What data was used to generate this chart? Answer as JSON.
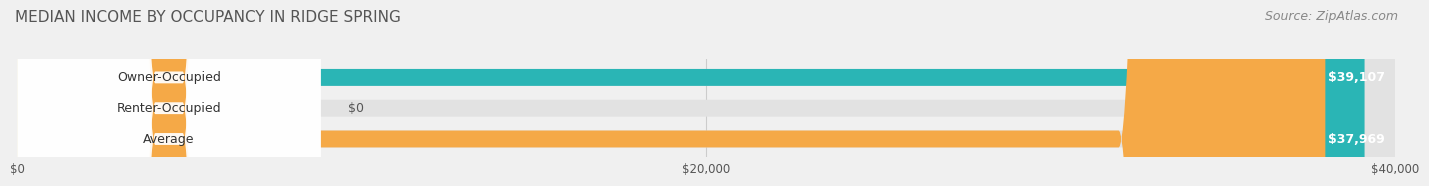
{
  "title": "MEDIAN INCOME BY OCCUPANCY IN RIDGE SPRING",
  "source": "Source: ZipAtlas.com",
  "categories": [
    "Owner-Occupied",
    "Renter-Occupied",
    "Average"
  ],
  "values": [
    39107,
    0,
    37969
  ],
  "bar_colors": [
    "#2ab5b5",
    "#b39ddb",
    "#f5a947"
  ],
  "value_labels": [
    "$39,107",
    "$0",
    "$37,969"
  ],
  "xlim": [
    0,
    40000
  ],
  "xticks": [
    0,
    20000,
    40000
  ],
  "xtick_labels": [
    "$0",
    "$20,000",
    "$40,000"
  ],
  "background_color": "#f0f0f0",
  "bar_bg_color": "#e2e2e2",
  "title_fontsize": 11,
  "source_fontsize": 9,
  "label_fontsize": 9,
  "value_fontsize": 9
}
